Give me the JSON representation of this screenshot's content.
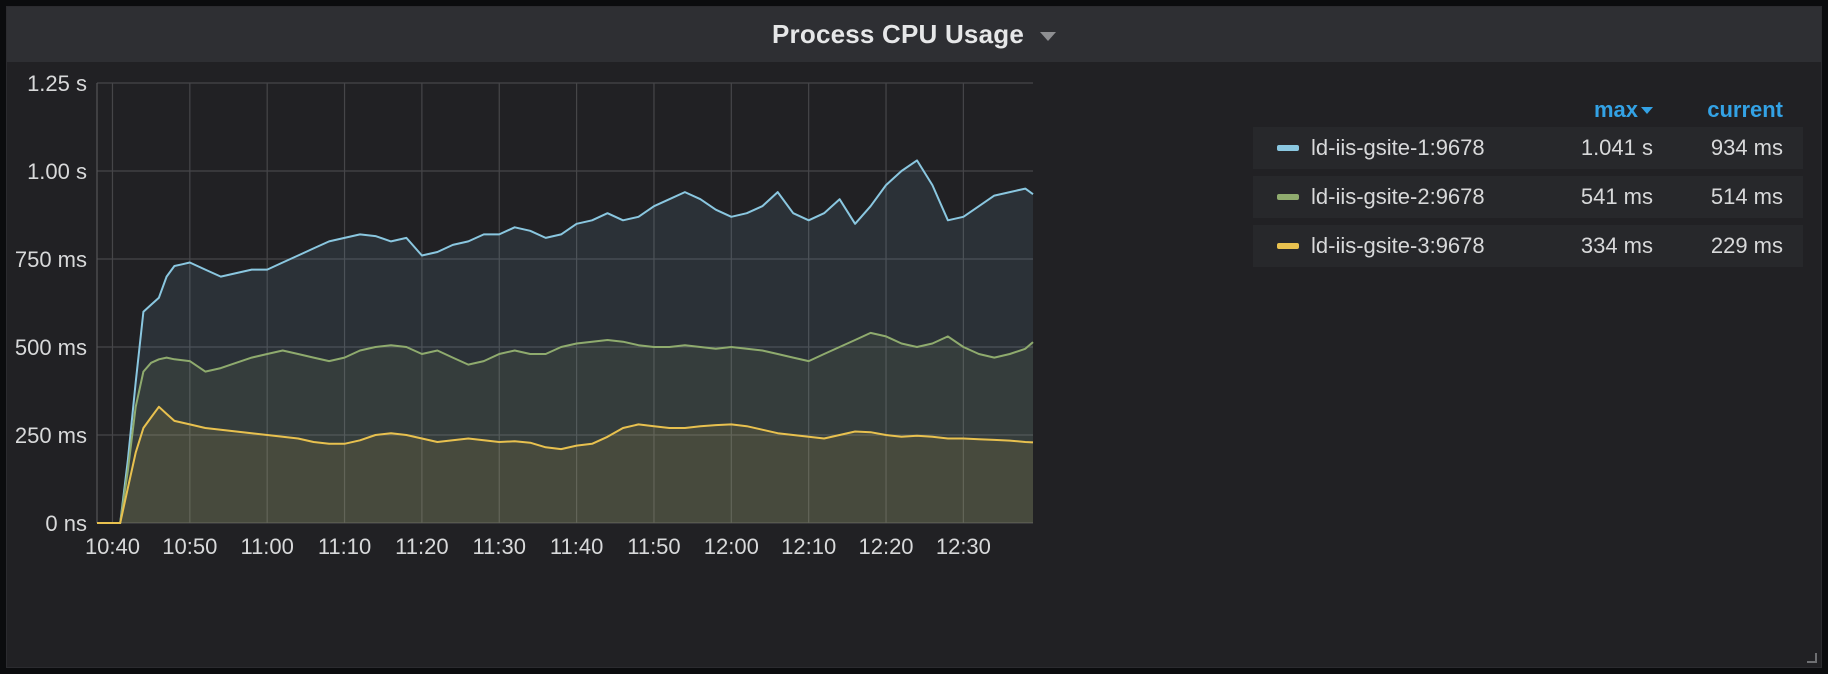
{
  "panel": {
    "title": "Process CPU Usage",
    "caret_icon": "caret-down-icon"
  },
  "legend": {
    "headers": {
      "max": "max",
      "current": "current"
    },
    "rows": [
      {
        "name": "ld-iis-gsite-1:9678",
        "max": "1.041 s",
        "current": "934 ms",
        "color": "#8ac7e0"
      },
      {
        "name": "ld-iis-gsite-2:9678",
        "max": "541 ms",
        "current": "514 ms",
        "color": "#8fab6e"
      },
      {
        "name": "ld-iis-gsite-3:9678",
        "max": "334 ms",
        "current": "229 ms",
        "color": "#e8c14f"
      }
    ]
  },
  "chart_data": {
    "type": "area",
    "x_range": [
      "10:38",
      "12:39"
    ],
    "y_range_ms": [
      0,
      1250
    ],
    "x_ticks": [
      "10:40",
      "10:50",
      "11:00",
      "11:10",
      "11:20",
      "11:30",
      "11:40",
      "11:50",
      "12:00",
      "12:10",
      "12:20",
      "12:30"
    ],
    "y_ticks": [
      "0 ns",
      "250 ms",
      "500 ms",
      "750 ms",
      "1.00 s",
      "1.25 s"
    ],
    "grid": true,
    "legend_position": "right",
    "series": [
      {
        "name": "ld-iis-gsite-1:9678",
        "color": "#8ac7e0",
        "x": [
          "10:38",
          "10:40",
          "10:41",
          "10:42",
          "10:43",
          "10:44",
          "10:45",
          "10:46",
          "10:47",
          "10:48",
          "10:49",
          "10:50",
          "10:52",
          "10:54",
          "10:56",
          "10:58",
          "11:00",
          "11:02",
          "11:04",
          "11:06",
          "11:08",
          "11:10",
          "11:12",
          "11:14",
          "11:16",
          "11:18",
          "11:20",
          "11:22",
          "11:24",
          "11:26",
          "11:28",
          "11:30",
          "11:32",
          "11:34",
          "11:36",
          "11:38",
          "11:40",
          "11:42",
          "11:44",
          "11:46",
          "11:48",
          "11:50",
          "11:52",
          "11:54",
          "11:56",
          "11:58",
          "12:00",
          "12:02",
          "12:04",
          "12:06",
          "12:08",
          "12:10",
          "12:12",
          "12:14",
          "12:16",
          "12:18",
          "12:20",
          "12:22",
          "12:24",
          "12:26",
          "12:28",
          "12:30",
          "12:32",
          "12:34",
          "12:36",
          "12:38",
          "12:39"
        ],
        "y": [
          0,
          0,
          0,
          180,
          400,
          600,
          620,
          640,
          700,
          730,
          735,
          740,
          720,
          700,
          710,
          720,
          720,
          740,
          760,
          780,
          800,
          810,
          820,
          815,
          800,
          810,
          760,
          770,
          790,
          800,
          820,
          820,
          840,
          830,
          810,
          820,
          850,
          860,
          880,
          860,
          870,
          900,
          920,
          940,
          920,
          890,
          870,
          880,
          900,
          940,
          880,
          860,
          880,
          920,
          850,
          900,
          960,
          1000,
          1030,
          960,
          860,
          870,
          900,
          930,
          940,
          950,
          934
        ]
      },
      {
        "name": "ld-iis-gsite-2:9678",
        "color": "#8fab6e",
        "x": [
          "10:38",
          "10:40",
          "10:41",
          "10:42",
          "10:43",
          "10:44",
          "10:45",
          "10:46",
          "10:47",
          "10:48",
          "10:50",
          "10:52",
          "10:54",
          "10:56",
          "10:58",
          "11:00",
          "11:02",
          "11:04",
          "11:06",
          "11:08",
          "11:10",
          "11:12",
          "11:14",
          "11:16",
          "11:18",
          "11:20",
          "11:22",
          "11:24",
          "11:26",
          "11:28",
          "11:30",
          "11:32",
          "11:34",
          "11:36",
          "11:38",
          "11:40",
          "11:42",
          "11:44",
          "11:46",
          "11:48",
          "11:50",
          "11:52",
          "11:54",
          "11:56",
          "11:58",
          "12:00",
          "12:02",
          "12:04",
          "12:06",
          "12:08",
          "12:10",
          "12:12",
          "12:14",
          "12:16",
          "12:18",
          "12:20",
          "12:22",
          "12:24",
          "12:26",
          "12:28",
          "12:30",
          "12:32",
          "12:34",
          "12:36",
          "12:38",
          "12:39"
        ],
        "y": [
          0,
          0,
          0,
          150,
          330,
          430,
          455,
          465,
          470,
          465,
          460,
          430,
          440,
          455,
          470,
          480,
          490,
          480,
          470,
          460,
          470,
          490,
          500,
          505,
          500,
          480,
          490,
          470,
          450,
          460,
          480,
          490,
          480,
          480,
          500,
          510,
          515,
          520,
          515,
          505,
          500,
          500,
          505,
          500,
          495,
          500,
          495,
          490,
          480,
          470,
          460,
          480,
          500,
          520,
          540,
          530,
          510,
          500,
          510,
          530,
          500,
          480,
          470,
          480,
          495,
          514
        ]
      },
      {
        "name": "ld-iis-gsite-3:9678",
        "color": "#e8c14f",
        "x": [
          "10:38",
          "10:40",
          "10:41",
          "10:42",
          "10:43",
          "10:44",
          "10:45",
          "10:46",
          "10:47",
          "10:48",
          "10:50",
          "10:52",
          "10:54",
          "10:56",
          "10:58",
          "11:00",
          "11:02",
          "11:04",
          "11:06",
          "11:08",
          "11:10",
          "11:12",
          "11:14",
          "11:16",
          "11:18",
          "11:20",
          "11:22",
          "11:24",
          "11:26",
          "11:28",
          "11:30",
          "11:32",
          "11:34",
          "11:36",
          "11:38",
          "11:40",
          "11:42",
          "11:44",
          "11:46",
          "11:48",
          "11:50",
          "11:52",
          "11:54",
          "11:56",
          "11:58",
          "12:00",
          "12:02",
          "12:04",
          "12:06",
          "12:08",
          "12:10",
          "12:12",
          "12:14",
          "12:16",
          "12:18",
          "12:20",
          "12:22",
          "12:24",
          "12:26",
          "12:28",
          "12:30",
          "12:32",
          "12:34",
          "12:36",
          "12:38",
          "12:39"
        ],
        "y": [
          0,
          0,
          0,
          100,
          200,
          270,
          300,
          330,
          310,
          290,
          280,
          270,
          265,
          260,
          255,
          250,
          245,
          240,
          230,
          225,
          225,
          235,
          250,
          255,
          250,
          240,
          230,
          235,
          240,
          235,
          230,
          232,
          228,
          215,
          210,
          220,
          225,
          245,
          270,
          280,
          275,
          270,
          270,
          275,
          278,
          280,
          275,
          265,
          255,
          250,
          245,
          240,
          250,
          260,
          258,
          250,
          245,
          248,
          245,
          240,
          240,
          238,
          236,
          234,
          230,
          229
        ]
      }
    ]
  }
}
